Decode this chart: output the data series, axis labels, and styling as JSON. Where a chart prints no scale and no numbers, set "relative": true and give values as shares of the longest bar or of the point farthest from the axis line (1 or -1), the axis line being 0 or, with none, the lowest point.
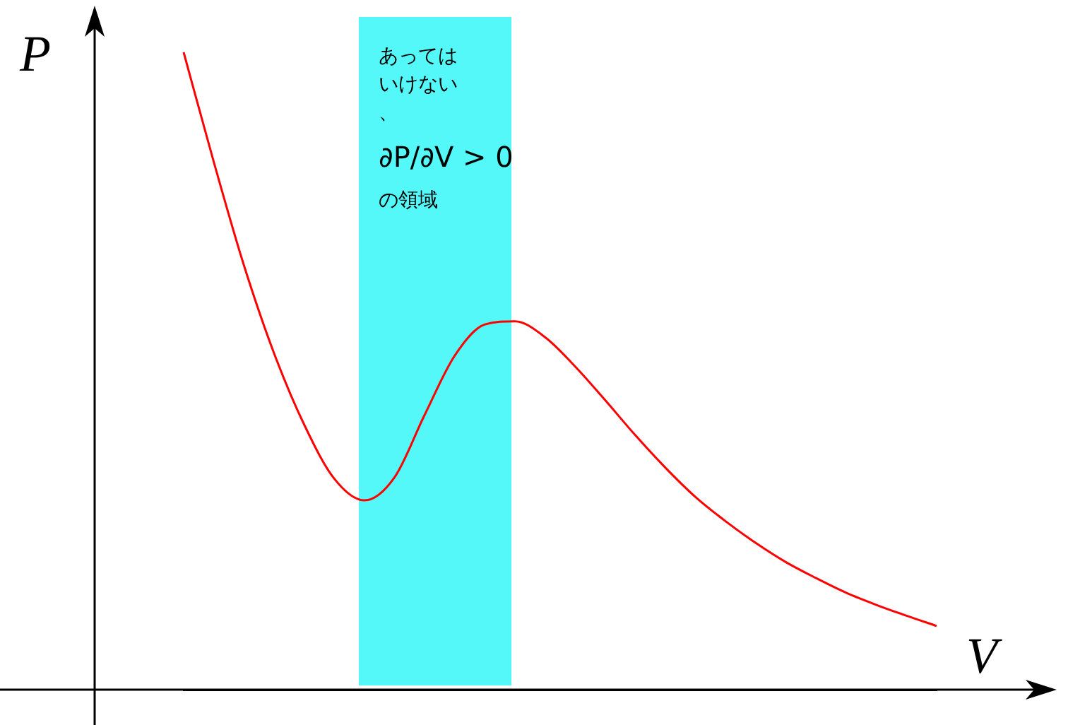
{
  "chart_data": {
    "type": "line",
    "relative": true,
    "xlabel": "V",
    "ylabel": "P",
    "marker": "none",
    "categories": [
      null,
      null,
      null,
      null,
      null,
      null,
      null,
      null,
      null,
      null,
      null,
      null,
      null,
      null,
      null,
      null,
      null,
      null,
      null,
      null,
      null,
      null,
      null,
      null,
      null,
      null
    ],
    "series": [
      {
        "color": "#ff0000",
        "values": [
          1.0,
          0.828,
          0.666,
          0.528,
          0.416,
          0.331,
          0.297,
          0.333,
          0.431,
          0.524,
          0.573,
          0.578,
          0.553,
          0.507,
          0.454,
          0.399,
          0.348,
          0.302,
          0.264,
          0.23,
          0.2,
          0.175,
          0.152,
          0.133,
          0.116,
          0.1
        ]
      }
    ],
    "annotations": [
      "あってはいけない、",
      "∂P/∂V > 0",
      "の領域"
    ]
  }
}
